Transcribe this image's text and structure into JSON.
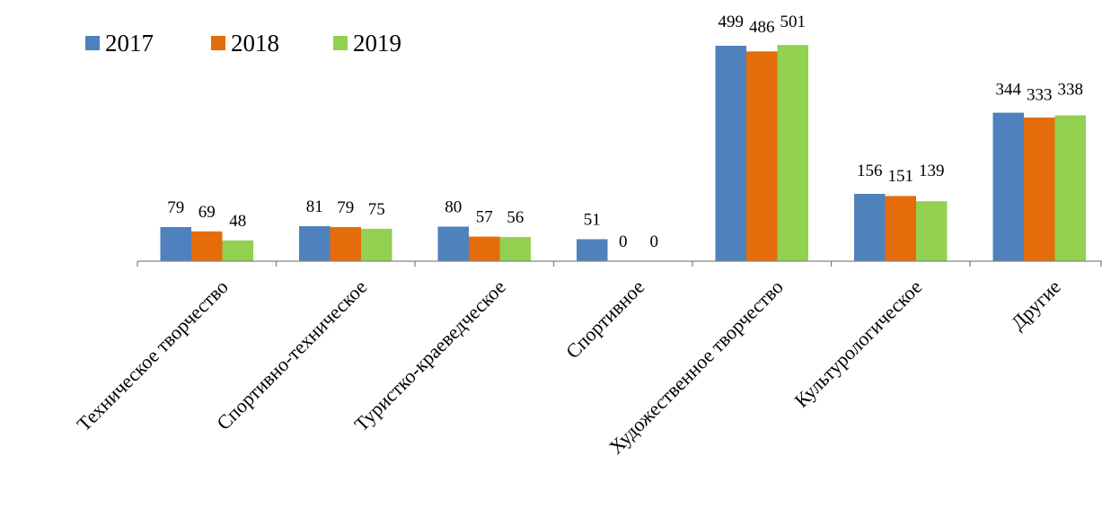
{
  "chart_data": {
    "type": "bar",
    "title": "",
    "xlabel": "",
    "ylabel": "",
    "ylim": [
      0,
      505
    ],
    "grid": false,
    "legend_position": "top-left",
    "categories": [
      "Техническое творчество",
      "Спортивно-техническое",
      "Туристко-краеведческое",
      "Спортивное",
      "Художественное творчество",
      "Культурологическое",
      "Другие"
    ],
    "series": [
      {
        "name": "2017",
        "color": "#4f81bd",
        "values": [
          79,
          81,
          80,
          51,
          499,
          156,
          344
        ]
      },
      {
        "name": "2018",
        "color": "#e46c0a",
        "values": [
          69,
          79,
          57,
          0,
          486,
          151,
          333
        ]
      },
      {
        "name": "2019",
        "color": "#92d050",
        "values": [
          48,
          75,
          56,
          0,
          501,
          139,
          338
        ]
      }
    ]
  }
}
